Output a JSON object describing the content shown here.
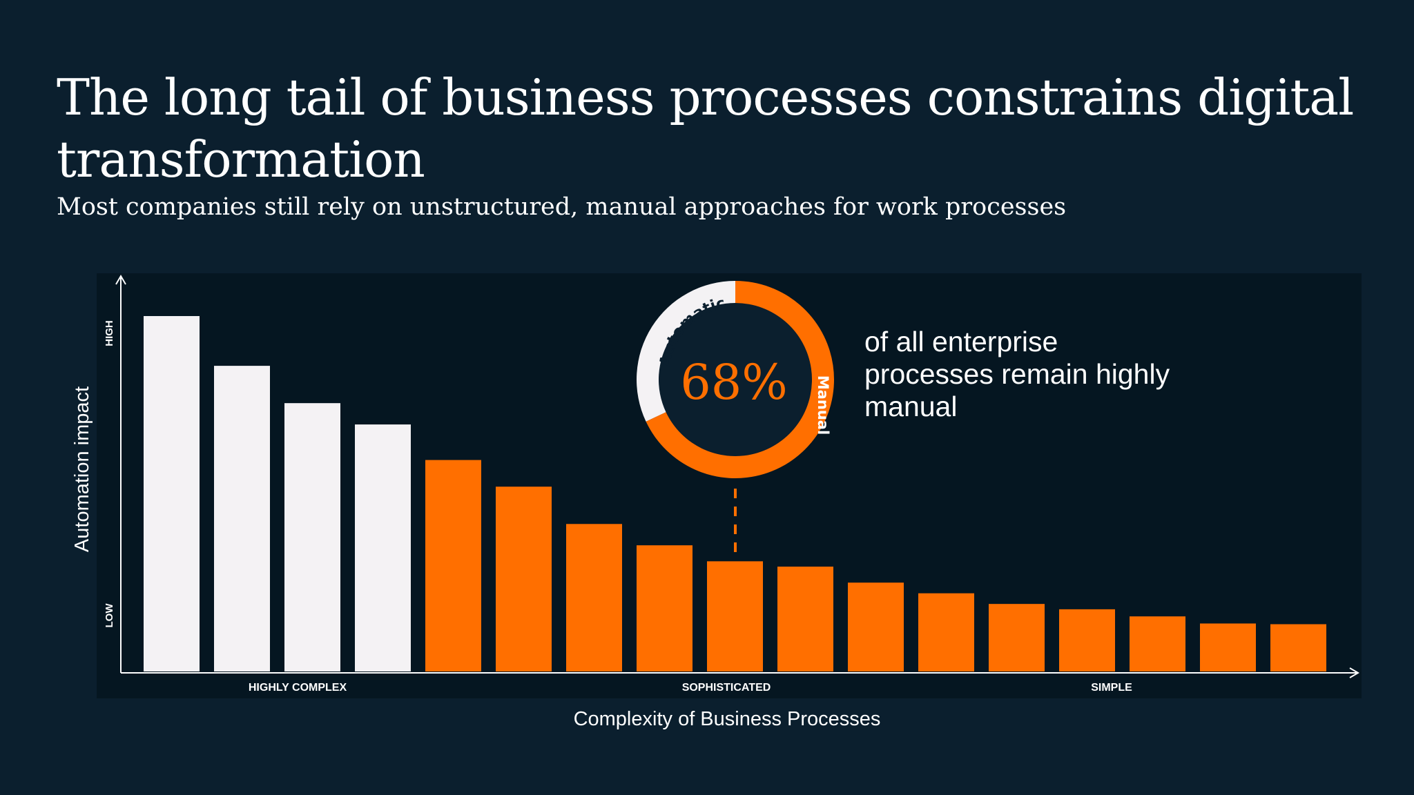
{
  "title": "The long tail of business processes constrains digital transformation",
  "subtitle": "Most companies still rely on unstructured, manual approaches for work processes",
  "callout": {
    "text": "of all enterprise processes remain highly manual"
  },
  "colors": {
    "background": "#0b1f2e",
    "plot_panel": "#051621",
    "automatic": "#f4f2f4",
    "manual": "#ff6f00",
    "text": "#ffffff"
  },
  "chart_data": [
    {
      "type": "bar",
      "title": "",
      "xlabel": "Complexity of Business Processes",
      "ylabel": "Automation impact",
      "y_tick_labels": [
        "HIGH",
        "LOW"
      ],
      "x_zone_labels": [
        "HIGHLY COMPLEX",
        "SOPHISTICATED",
        "SIMPLE"
      ],
      "ylim": [
        0,
        100
      ],
      "grid": false,
      "values": [
        100,
        86,
        75.5,
        69.5,
        59.5,
        52,
        41.5,
        35.5,
        31,
        29.5,
        25,
        22,
        19,
        17.5,
        15.5,
        13.5,
        13.3
      ],
      "automatic_bar_count": 4,
      "pointer_bar": 9
    },
    {
      "type": "pie",
      "style": "donut",
      "center_label": "68%",
      "slices": [
        {
          "label": "Manual",
          "value": 68
        },
        {
          "label": "Automatic",
          "value": 32
        }
      ]
    }
  ]
}
